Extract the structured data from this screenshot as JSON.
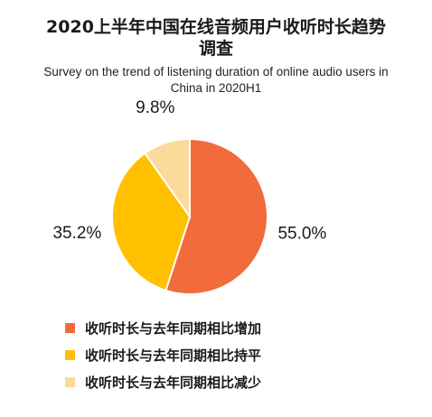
{
  "chart_data": {
    "type": "pie",
    "title": "2020上半年中国在线音频用户收听时长趋势调查",
    "subtitle": "Survey on the trend of listening duration of online audio users in China in 2020H1",
    "categories": [
      "收听时长与去年同期相比增加",
      "收听时长与去年同期相比持平",
      "收听时长与去年同期相比减少"
    ],
    "values": [
      55.0,
      35.2,
      9.8
    ],
    "data_labels": [
      "55.0%",
      "35.2%",
      "9.8%"
    ],
    "colors": [
      "#F26B3A",
      "#FFC000",
      "#FBD99A"
    ],
    "legend_position": "bottom-left",
    "start_angle": "12-o-clock",
    "direction": "clockwise"
  },
  "header": {
    "title_line1": "2020上半年中国在线音频用户收听时长趋势",
    "title_line2": "调查",
    "subtitle_line1": "Survey on the trend of listening duration of online audio users in",
    "subtitle_line2": "China in 2020H1"
  },
  "legend": {
    "items": [
      {
        "label": "收听时长与去年同期相比增加",
        "color": "#F26B3A"
      },
      {
        "label": "收听时长与去年同期相比持平",
        "color": "#FFC000"
      },
      {
        "label": "收听时长与去年同期相比减少",
        "color": "#FBD99A"
      }
    ]
  }
}
